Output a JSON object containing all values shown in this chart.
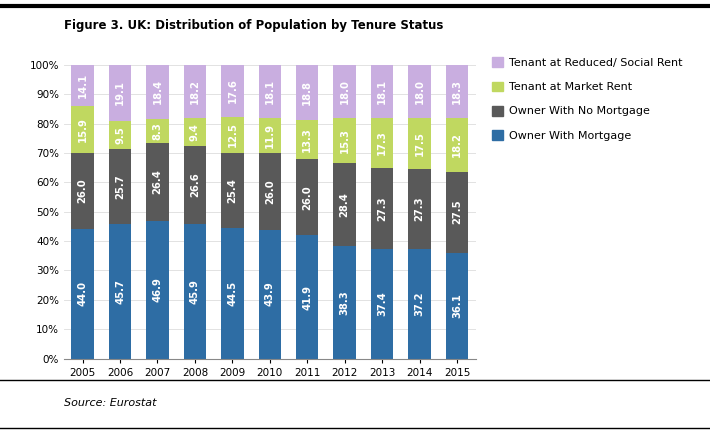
{
  "title": "Figure 3. UK: Distribution of Population by Tenure Status",
  "source": "Source: Eurostat",
  "years": [
    2005,
    2006,
    2007,
    2008,
    2009,
    2010,
    2011,
    2012,
    2013,
    2014,
    2015
  ],
  "series": {
    "Owner With Mortgage": [
      44.0,
      45.7,
      46.9,
      45.9,
      44.5,
      43.9,
      41.9,
      38.3,
      37.4,
      37.2,
      36.1
    ],
    "Owner With No Mortgage": [
      26.0,
      25.7,
      26.4,
      26.6,
      25.4,
      26.0,
      26.0,
      28.4,
      27.3,
      27.3,
      27.5
    ],
    "Tenant at Market Rent": [
      15.9,
      9.5,
      8.3,
      9.4,
      12.5,
      11.9,
      13.3,
      15.3,
      17.3,
      17.5,
      18.2
    ],
    "Tenant at Reduced/ Social Rent": [
      14.1,
      19.1,
      18.4,
      18.2,
      17.6,
      18.1,
      18.8,
      18.0,
      18.1,
      18.0,
      18.3
    ]
  },
  "colors": {
    "Owner With Mortgage": "#2e6da4",
    "Owner With No Mortgage": "#595959",
    "Tenant at Market Rent": "#c0d860",
    "Tenant at Reduced/ Social Rent": "#c9aee0"
  },
  "legend_order": [
    "Tenant at Reduced/ Social Rent",
    "Tenant at Market Rent",
    "Owner With No Mortgage",
    "Owner With Mortgage"
  ],
  "ylim": [
    0,
    100
  ],
  "yticks": [
    0,
    10,
    20,
    30,
    40,
    50,
    60,
    70,
    80,
    90,
    100
  ],
  "ytick_labels": [
    "0%",
    "10%",
    "20%",
    "30%",
    "40%",
    "50%",
    "60%",
    "70%",
    "80%",
    "90%",
    "100%"
  ],
  "bar_width": 0.6,
  "font_size_title": 8.5,
  "font_size_labels": 7.2,
  "font_size_ticks": 7.5,
  "font_size_legend": 8,
  "font_size_source": 8
}
